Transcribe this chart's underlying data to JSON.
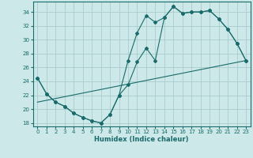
{
  "xlabel": "Humidex (Indice chaleur)",
  "bg_color": "#cce8e8",
  "grid_color": "#aacccc",
  "line_color": "#1a6b6b",
  "xlim": [
    -0.5,
    23.5
  ],
  "ylim": [
    17.5,
    35.5
  ],
  "xticks": [
    0,
    1,
    2,
    3,
    4,
    5,
    6,
    7,
    8,
    9,
    10,
    11,
    12,
    13,
    14,
    15,
    16,
    17,
    18,
    19,
    20,
    21,
    22,
    23
  ],
  "yticks": [
    18,
    20,
    22,
    24,
    26,
    28,
    30,
    32,
    34
  ],
  "line1_x": [
    0,
    1,
    2,
    3,
    4,
    5,
    6,
    7,
    8,
    9,
    10,
    11,
    12,
    13,
    14,
    15,
    16,
    17,
    18,
    19,
    20,
    21,
    22,
    23
  ],
  "line1_y": [
    24.5,
    22.2,
    21.0,
    20.4,
    19.4,
    18.8,
    18.3,
    18.0,
    19.2,
    22.0,
    27.0,
    31.0,
    33.5,
    32.5,
    33.2,
    34.8,
    33.8,
    34.0,
    34.0,
    34.2,
    33.0,
    31.5,
    29.5,
    27.0
  ],
  "line2_x": [
    0,
    1,
    2,
    3,
    4,
    5,
    6,
    7,
    8,
    9,
    10,
    11,
    12,
    13,
    14,
    15,
    16,
    17,
    18,
    19,
    20,
    21,
    22,
    23
  ],
  "line2_y": [
    24.5,
    22.2,
    21.0,
    20.4,
    19.4,
    18.8,
    18.3,
    18.0,
    19.2,
    22.0,
    23.5,
    26.8,
    28.8,
    27.0,
    33.2,
    34.8,
    33.8,
    34.0,
    34.0,
    34.2,
    33.0,
    31.5,
    29.5,
    27.0
  ],
  "line3_x": [
    0,
    23
  ],
  "line3_y": [
    21.0,
    27.0
  ],
  "xlabel_fontsize": 6,
  "tick_fontsize": 5,
  "linewidth": 0.8,
  "markersize": 2.0
}
